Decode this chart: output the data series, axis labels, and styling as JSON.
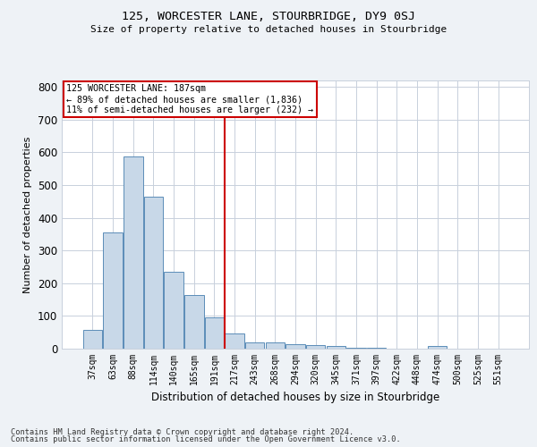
{
  "title": "125, WORCESTER LANE, STOURBRIDGE, DY9 0SJ",
  "subtitle": "Size of property relative to detached houses in Stourbridge",
  "xlabel": "Distribution of detached houses by size in Stourbridge",
  "ylabel": "Number of detached properties",
  "bar_labels": [
    "37sqm",
    "63sqm",
    "88sqm",
    "114sqm",
    "140sqm",
    "165sqm",
    "191sqm",
    "217sqm",
    "243sqm",
    "268sqm",
    "294sqm",
    "320sqm",
    "345sqm",
    "371sqm",
    "397sqm",
    "422sqm",
    "448sqm",
    "474sqm",
    "500sqm",
    "525sqm",
    "551sqm"
  ],
  "bar_values": [
    57,
    355,
    587,
    465,
    235,
    163,
    95,
    47,
    20,
    18,
    15,
    12,
    7,
    3,
    2,
    1,
    1,
    8,
    1,
    1,
    1
  ],
  "bar_color": "#c8d8e8",
  "bar_edge_color": "#5b8db8",
  "ref_line_x": 6.5,
  "annotation_line1": "125 WORCESTER LANE: 187sqm",
  "annotation_line2": "← 89% of detached houses are smaller (1,836)",
  "annotation_line3": "11% of semi-detached houses are larger (232) →",
  "annotation_box_color": "#ffffff",
  "annotation_box_edge": "#cc0000",
  "ref_line_color": "#cc0000",
  "ylim": [
    0,
    820
  ],
  "yticks": [
    0,
    100,
    200,
    300,
    400,
    500,
    600,
    700,
    800
  ],
  "footer1": "Contains HM Land Registry data © Crown copyright and database right 2024.",
  "footer2": "Contains public sector information licensed under the Open Government Licence v3.0.",
  "bg_color": "#eef2f6",
  "plot_bg_color": "#ffffff",
  "grid_color": "#c8d0dc"
}
